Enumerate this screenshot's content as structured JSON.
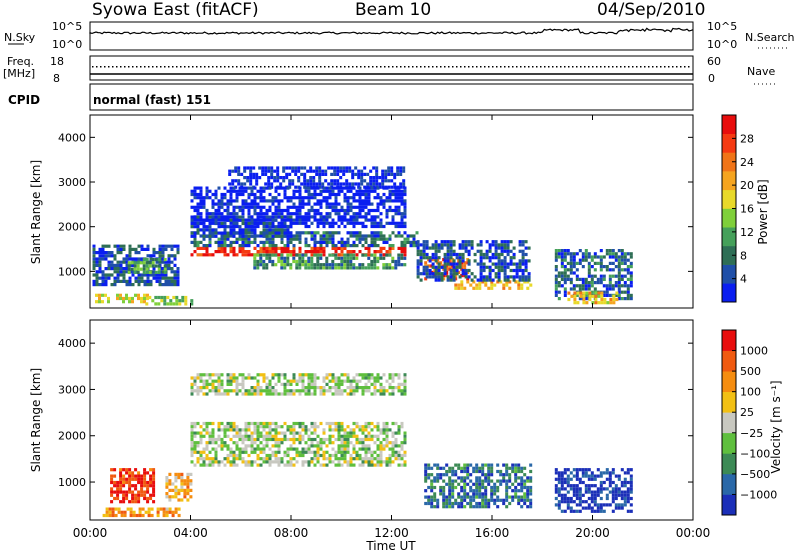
{
  "header": {
    "station": "Syowa East (fitACF)",
    "beam": "Beam 10",
    "date": "04/Sep/2010"
  },
  "noise_panel": {
    "left_label": "N.Sky",
    "right_label": "N.Search",
    "left_ticks": [
      "10^5",
      "10^0"
    ],
    "right_ticks": [
      "10^5",
      "10^0"
    ]
  },
  "freq_panel": {
    "left_label_line1": "Freq.",
    "left_label_line2": "[MHz]",
    "right_label": "Nave",
    "left_ticks": [
      "18",
      "8"
    ],
    "right_ticks": [
      "60",
      "0"
    ]
  },
  "cpid": {
    "label": "CPID",
    "value": "normal (fast) 151"
  },
  "chart_data": [
    {
      "type": "heatmap",
      "title": "",
      "xlabel": "",
      "ylabel": "Slant Range [km]",
      "x_ticks": [
        "00:00",
        "04:00",
        "08:00",
        "12:00",
        "16:00",
        "20:00",
        "00:00"
      ],
      "y_ticks": [
        1000,
        2000,
        3000,
        4000
      ],
      "ylim": [
        180,
        4500
      ],
      "xlim_hours": [
        0,
        24
      ],
      "colorbar": {
        "label": "Power [dB]",
        "ticks": [
          "4",
          "8",
          "12",
          "16",
          "20",
          "24",
          "28"
        ],
        "colors": [
          "#0a1ef0",
          "#1f4fa8",
          "#2e6e55",
          "#45a05a",
          "#7fcf3a",
          "#e8d92a",
          "#f5a41f",
          "#f07418",
          "#f53a12",
          "#e80d0d"
        ]
      },
      "regions": [
        {
          "t0": 0.2,
          "t1": 2.3,
          "r0": 300,
          "r1": 500,
          "level": 0.55
        },
        {
          "t0": 0.1,
          "t1": 3.5,
          "r0": 700,
          "r1": 1600,
          "level": 0.15
        },
        {
          "t0": 1.5,
          "t1": 3.0,
          "r0": 1000,
          "r1": 1300,
          "level": 0.35
        },
        {
          "t0": 2.2,
          "t1": 4.0,
          "r0": 250,
          "r1": 450,
          "level": 0.45
        },
        {
          "t0": 4.0,
          "t1": 12.5,
          "r0": 1400,
          "r1": 1550,
          "level": 0.92
        },
        {
          "t0": 4.0,
          "t1": 13.0,
          "r0": 1550,
          "r1": 1900,
          "level": 0.2
        },
        {
          "t0": 4.0,
          "t1": 8.0,
          "r0": 1800,
          "r1": 2250,
          "level": 0.12
        },
        {
          "t0": 6.5,
          "t1": 12.5,
          "r0": 1100,
          "r1": 1400,
          "level": 0.3
        },
        {
          "t0": 5.5,
          "t1": 12.5,
          "r0": 2900,
          "r1": 3350,
          "level": 0.05
        },
        {
          "t0": 4.0,
          "t1": 12.5,
          "r0": 2000,
          "r1": 2900,
          "level": 0.02
        },
        {
          "t0": 13.3,
          "t1": 15.0,
          "r0": 800,
          "r1": 1300,
          "level": 0.8
        },
        {
          "t0": 14.5,
          "t1": 17.5,
          "r0": 600,
          "r1": 800,
          "level": 0.65
        },
        {
          "t0": 13.0,
          "t1": 17.5,
          "r0": 800,
          "r1": 1700,
          "level": 0.15
        },
        {
          "t0": 18.5,
          "t1": 21.5,
          "r0": 400,
          "r1": 1500,
          "level": 0.2
        },
        {
          "t0": 19.0,
          "t1": 21.0,
          "r0": 300,
          "r1": 550,
          "level": 0.6
        }
      ]
    },
    {
      "type": "heatmap",
      "title": "",
      "xlabel": "Time UT",
      "ylabel": "Slant Range [km]",
      "x_ticks": [
        "00:00",
        "04:00",
        "08:00",
        "12:00",
        "16:00",
        "20:00",
        "00:00"
      ],
      "y_ticks": [
        1000,
        2000,
        3000,
        4000
      ],
      "ylim": [
        180,
        4500
      ],
      "xlim_hours": [
        0,
        24
      ],
      "colorbar": {
        "label": "Velocity [m s⁻¹]",
        "ticks": [
          "1000",
          "500",
          "100",
          "25",
          "−25",
          "−100",
          "−500",
          "−1000"
        ],
        "colors": [
          "#1b2fb8",
          "#2a68a8",
          "#3c8a55",
          "#5fbf3e",
          "#c8c8c0",
          "#f2c014",
          "#f58d10",
          "#f05a10",
          "#e80d0d"
        ]
      },
      "regions": [
        {
          "t0": 0.8,
          "t1": 2.5,
          "r0": 600,
          "r1": 1300,
          "level": 0.9
        },
        {
          "t0": 0.5,
          "t1": 3.5,
          "r0": 250,
          "r1": 450,
          "level": 0.7
        },
        {
          "t0": 4.0,
          "t1": 12.5,
          "r0": 1350,
          "r1": 2300,
          "level": 0.45
        },
        {
          "t0": 4.0,
          "t1": 12.5,
          "r0": 2900,
          "r1": 3350,
          "level": 0.45
        },
        {
          "t0": 13.3,
          "t1": 17.5,
          "r0": 500,
          "r1": 1400,
          "level": 0.2
        },
        {
          "t0": 18.5,
          "t1": 21.5,
          "r0": 400,
          "r1": 1300,
          "level": 0.05
        },
        {
          "t0": 3.0,
          "t1": 4.0,
          "r0": 600,
          "r1": 1200,
          "level": 0.65
        }
      ]
    }
  ]
}
